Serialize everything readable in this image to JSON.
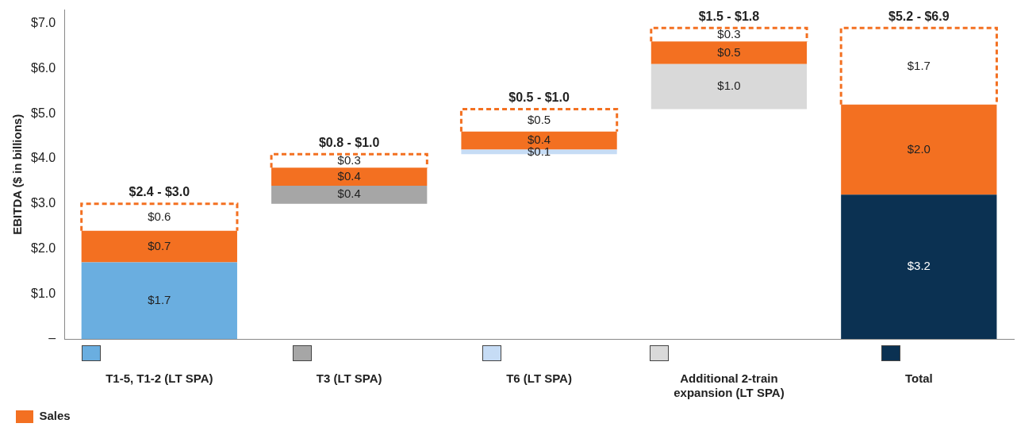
{
  "chart_data": {
    "type": "bar",
    "ylabel": "EBITDA ($ in billions)",
    "categories": [
      "T1-5, T1-2 (LT SPA)",
      "T3 (LT SPA)",
      "T6 (LT SPA)",
      "Additional 2-train expansion (LT SPA)",
      "Total"
    ],
    "series": [
      {
        "colors": [
          "#6aaee0",
          "#a6a6a6",
          "#c6dcf5",
          "#d9d9d9",
          "#0b3152"
        ],
        "base": [
          0,
          3.0,
          4.1,
          5.1,
          0
        ],
        "values": [
          1.7,
          0.4,
          0.1,
          1.0,
          3.2
        ],
        "value_labels": [
          "$1.7",
          "$0.4",
          "$0.1",
          "$1.0",
          "$3.2"
        ]
      },
      {
        "name": "Sales",
        "color": "#f37021",
        "base": [
          1.7,
          3.4,
          4.2,
          6.1,
          3.2
        ],
        "values": [
          0.7,
          0.4,
          0.4,
          0.5,
          2.0
        ],
        "value_labels": [
          "$0.7",
          "$0.4",
          "$0.4",
          "$0.5",
          "$2.0"
        ]
      },
      {
        "color": "#ffffff",
        "line_style": "dashed",
        "base": [
          2.4,
          3.8,
          4.6,
          6.6,
          5.2
        ],
        "values": [
          0.6,
          0.3,
          0.5,
          0.3,
          1.7
        ],
        "value_labels": [
          "$0.6",
          "$0.3",
          "$0.5",
          "$0.3",
          "$1.7"
        ]
      }
    ],
    "totals": [
      "$2.4 - $3.0",
      "$0.8 - $1.0",
      "$0.5 - $1.0",
      "$1.5 - $1.8",
      "$5.2 - $6.9"
    ],
    "ylim": [
      0,
      7.3
    ],
    "yticks": [
      {
        "value": 0,
        "label": "–"
      },
      {
        "value": 1,
        "label": "$1.0"
      },
      {
        "value": 2,
        "label": "$2.0"
      },
      {
        "value": 3,
        "label": "$3.0"
      },
      {
        "value": 4,
        "label": "$4.0"
      },
      {
        "value": 5,
        "label": "$5.0"
      },
      {
        "value": 6,
        "label": "$6.0"
      },
      {
        "value": 7,
        "label": "$7.0"
      }
    ],
    "grid": false,
    "legend": "bottom left"
  }
}
